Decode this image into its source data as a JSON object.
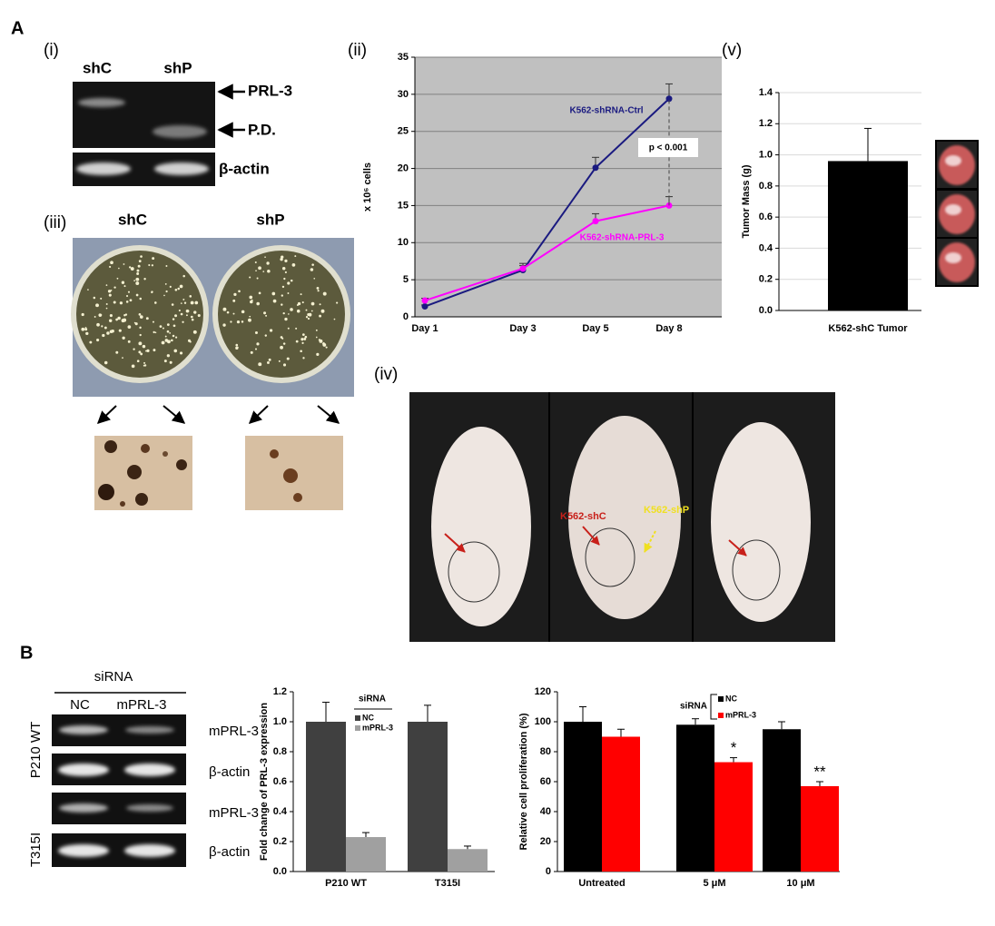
{
  "figure": {
    "panel_A": "A",
    "panel_B": "B",
    "i": "(i)",
    "ii": "(ii)",
    "iii": "(iii)",
    "iv": "(iv)",
    "v": "(v)",
    "gel_i": {
      "lanes": [
        "shC",
        "shP"
      ],
      "bands": [
        "PRL-3",
        "P.D.",
        "β-actin"
      ]
    },
    "plates": {
      "lanes": [
        "shC",
        "shP"
      ]
    },
    "mice": {
      "labels": [
        "K562-shC",
        "K562-shP"
      ]
    },
    "gel_B": {
      "header": "siRNA",
      "lanes": [
        "NC",
        "mPRL-3"
      ],
      "bands": [
        "mPRL-3",
        "β-actin",
        "mPRL-3",
        "β-actin"
      ],
      "groups": [
        "P210 WT",
        "T315I"
      ]
    }
  },
  "chart_data": [
    {
      "type": "line",
      "y_label": "x 10⁶ cells",
      "categories": [
        "Day 1",
        "Day 3",
        "Day 5",
        "Day 8"
      ],
      "series": [
        {
          "name": "K562-shRNA-Ctrl",
          "color": "#1a1a80",
          "values": [
            1.4,
            6.3,
            20.1,
            29.4
          ],
          "errors": [
            0.2,
            0.6,
            1.4,
            2.0
          ]
        },
        {
          "name": "K562-shRNA-PRL-3",
          "color": "#ff00ff",
          "values": [
            2.2,
            6.5,
            12.9,
            15.0
          ],
          "errors": [
            0.3,
            0.7,
            1.0,
            1.2
          ]
        }
      ],
      "annotation": "p < 0.001",
      "ylim": [
        0,
        35
      ],
      "yticks": [
        0,
        5,
        10,
        15,
        20,
        25,
        30,
        35
      ],
      "grid": true,
      "background": "#c0c0c0"
    },
    {
      "type": "bar",
      "y_label": "Tumor Mass  (g)",
      "categories": [
        "K562-shC Tumor"
      ],
      "values": [
        0.96
      ],
      "errors": [
        0.21
      ],
      "color": "#000000",
      "ylim": [
        0,
        1.4
      ],
      "yticks": [
        {
          "value": 0,
          "label": "0.0"
        },
        {
          "value": 0.2,
          "label": "0.2"
        },
        {
          "value": 0.4,
          "label": "0.4"
        },
        {
          "value": 0.6,
          "label": "0.6"
        },
        {
          "value": 0.8,
          "label": "0.8"
        },
        {
          "value": 1,
          "label": "1.0"
        },
        {
          "value": 1.2,
          "label": "1.2"
        },
        {
          "value": 1.4,
          "label": "1.4"
        }
      ],
      "grid": true
    },
    {
      "type": "bar",
      "y_label": "Fold change of PRL-3 expression",
      "categories": [
        "P210 WT",
        "T315I"
      ],
      "series": [
        {
          "name": "NC",
          "color": "#404040",
          "values": [
            1.0,
            1.0
          ],
          "errors": [
            0.13,
            0.11
          ]
        },
        {
          "name": "mPRL-3",
          "color": "#a0a0a0",
          "values": [
            0.23,
            0.15
          ],
          "errors": [
            0.03,
            0.02
          ]
        }
      ],
      "legend_title": "siRNA",
      "ylim": [
        0,
        1.2
      ],
      "yticks": [
        {
          "value": 0,
          "label": "0.0"
        },
        {
          "value": 0.2,
          "label": "0.2"
        },
        {
          "value": 0.4,
          "label": "0.4"
        },
        {
          "value": 0.6,
          "label": "0.6"
        },
        {
          "value": 0.8,
          "label": "0.8"
        },
        {
          "value": 1,
          "label": "1.0"
        },
        {
          "value": 1.2,
          "label": "1.2"
        }
      ],
      "grid": false
    },
    {
      "type": "bar",
      "y_label": "Relative cell proliferation (%)",
      "categories": [
        "Untreated",
        "5 μM",
        "10 μM"
      ],
      "series": [
        {
          "name": "NC",
          "color": "#000000",
          "values": [
            100,
            98,
            95
          ],
          "errors": [
            10,
            4,
            5
          ]
        },
        {
          "name": "mPRL-3",
          "color": "#ff0000",
          "values": [
            90,
            73,
            57
          ],
          "errors": [
            5,
            3,
            3
          ]
        }
      ],
      "legend_title": "siRNA",
      "annotations": [
        "*",
        "**"
      ],
      "ylim": [
        0,
        120
      ],
      "yticks": [
        0,
        20,
        40,
        60,
        80,
        100,
        120
      ],
      "grid": false
    }
  ]
}
